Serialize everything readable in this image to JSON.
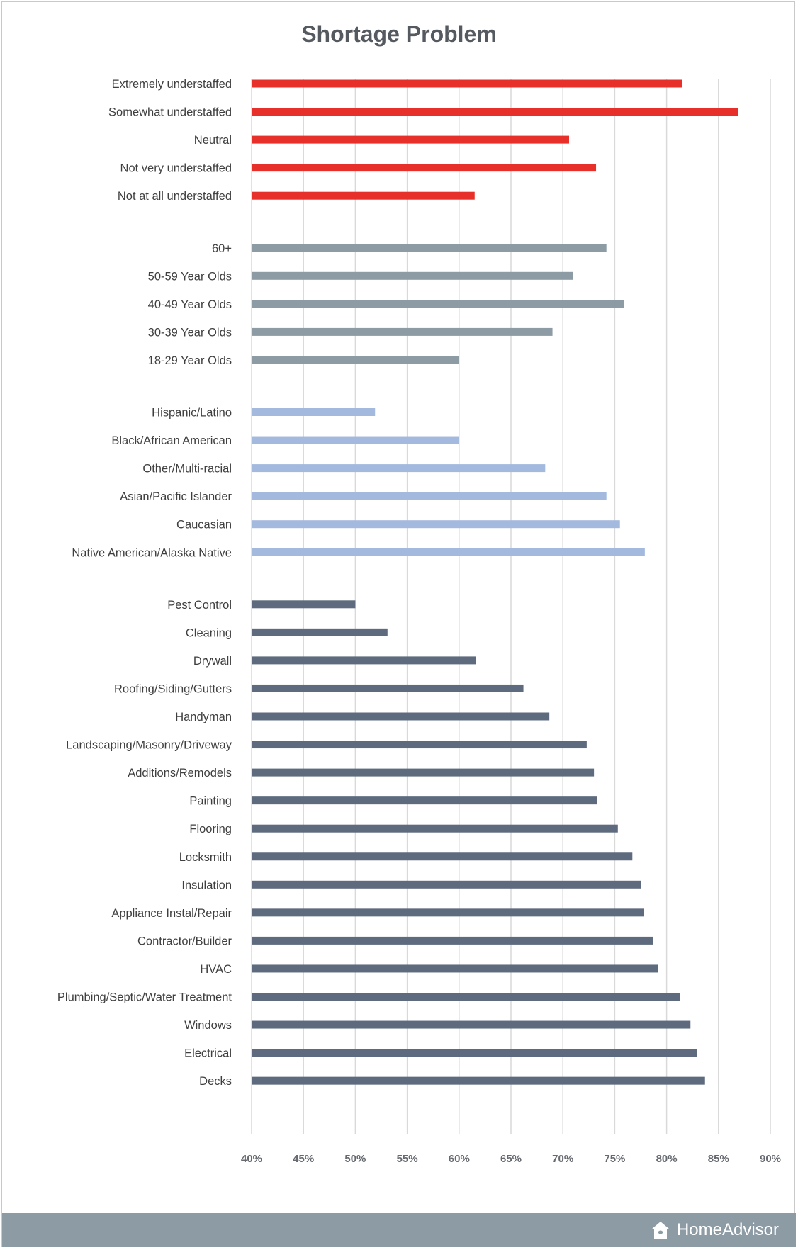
{
  "brand": {
    "name": "HomeAdvisor",
    "icon": "house-icon"
  },
  "chart_data": {
    "type": "bar",
    "orientation": "horizontal",
    "title": "Shortage Problem",
    "xlabel": "",
    "ylabel": "",
    "xlim": [
      40,
      90
    ],
    "x_ticks": [
      "40%",
      "45%",
      "50%",
      "55%",
      "60%",
      "65%",
      "70%",
      "75%",
      "80%",
      "85%",
      "90%"
    ],
    "grid": true,
    "legend": "none",
    "groups": [
      {
        "color": "#e8302a",
        "bars": [
          {
            "category": "Extremely understaffed",
            "value": 81.5
          },
          {
            "category": "Somewhat understaffed",
            "value": 86.9
          },
          {
            "category": "Neutral",
            "value": 70.6
          },
          {
            "category": "Not very understaffed",
            "value": 73.2
          },
          {
            "category": "Not at all understaffed",
            "value": 61.5
          }
        ]
      },
      {
        "color": "#8d9ba5",
        "bars": [
          {
            "category": "60+",
            "value": 74.2
          },
          {
            "category": "50-59 Year Olds",
            "value": 71.0
          },
          {
            "category": "40-49 Year Olds",
            "value": 75.9
          },
          {
            "category": "30-39 Year Olds",
            "value": 69.0
          },
          {
            "category": "18-29 Year Olds",
            "value": 60.0
          }
        ]
      },
      {
        "color": "#a3b9de",
        "bars": [
          {
            "category": "Hispanic/Latino",
            "value": 51.9
          },
          {
            "category": "Black/African American",
            "value": 60.0
          },
          {
            "category": "Other/Multi-racial",
            "value": 68.3
          },
          {
            "category": "Asian/Pacific Islander",
            "value": 74.2
          },
          {
            "category": "Caucasian",
            "value": 75.5
          },
          {
            "category": "Native American/Alaska Native",
            "value": 77.9
          }
        ]
      },
      {
        "color": "#5e6b7e",
        "bars": [
          {
            "category": "Pest Control",
            "value": 50.0
          },
          {
            "category": "Cleaning",
            "value": 53.1
          },
          {
            "category": "Drywall",
            "value": 61.6
          },
          {
            "category": "Roofing/Siding/Gutters",
            "value": 66.2
          },
          {
            "category": "Handyman",
            "value": 68.7
          },
          {
            "category": "Landscaping/Masonry/Driveway",
            "value": 72.3
          },
          {
            "category": "Additions/Remodels",
            "value": 73.0
          },
          {
            "category": "Painting",
            "value": 73.3
          },
          {
            "category": "Flooring",
            "value": 75.3
          },
          {
            "category": "Locksmith",
            "value": 76.7
          },
          {
            "category": "Insulation",
            "value": 77.5
          },
          {
            "category": "Appliance Instal/Repair",
            "value": 77.8
          },
          {
            "category": "Contractor/Builder",
            "value": 78.7
          },
          {
            "category": "HVAC",
            "value": 79.2
          },
          {
            "category": "Plumbing/Septic/Water Treatment",
            "value": 81.3
          },
          {
            "category": "Windows",
            "value": 82.3
          },
          {
            "category": "Electrical",
            "value": 82.9
          },
          {
            "category": "Decks",
            "value": 83.7
          }
        ]
      }
    ]
  }
}
